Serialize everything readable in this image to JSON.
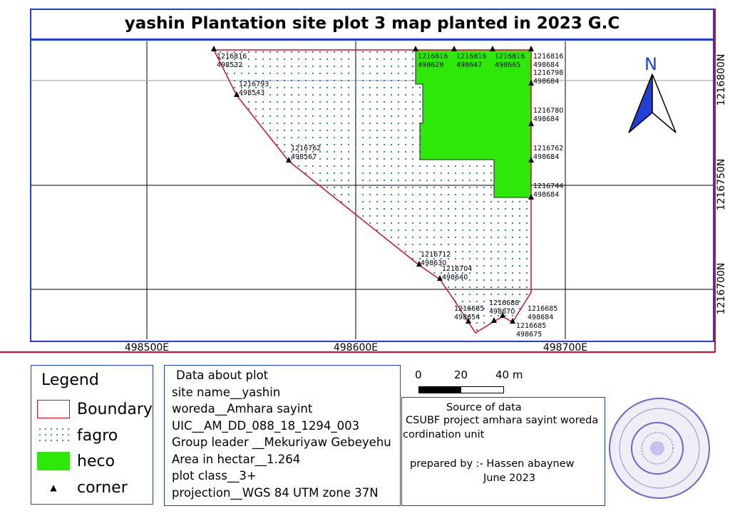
{
  "title": "yashin Plantation site plot 3 map planted in 2023 G.C",
  "grid": {
    "northings": [
      "1216800N",
      "1216750N",
      "1216700N"
    ],
    "eastings": [
      "498500E",
      "498600E",
      "498700E"
    ]
  },
  "north_arrow": {
    "label": "N",
    "color": "#1f3fd6"
  },
  "corners": [
    {
      "n": "1216816",
      "e": "498532"
    },
    {
      "n": "1216793",
      "e": "498543"
    },
    {
      "n": "1216762",
      "e": "498567"
    },
    {
      "n": "1216816",
      "e": "498628"
    },
    {
      "n": "1216816",
      "e": "498647"
    },
    {
      "n": "1216816",
      "e": "498665"
    },
    {
      "n": "1216816",
      "e": "498684"
    },
    {
      "n": "1216798",
      "e": "498684"
    },
    {
      "n": "1216780",
      "e": "498684"
    },
    {
      "n": "1216762",
      "e": "498684"
    },
    {
      "n": "1216744",
      "e": "498684"
    },
    {
      "n": "1216712",
      "e": "498630"
    },
    {
      "n": "1216704",
      "e": "498640"
    },
    {
      "n": "1216685",
      "e": "498654"
    },
    {
      "n": "1216688",
      "e": "498670"
    },
    {
      "n": "1216685",
      "e": "498684"
    },
    {
      "n": "1216685",
      "e": "498675"
    }
  ],
  "legend": {
    "title": "Legend",
    "items": [
      {
        "label": "Boundary",
        "color": "#d0102a"
      },
      {
        "label": "fagro",
        "color": "#3a7fc0"
      },
      {
        "label": "heco",
        "color": "#2ee80a"
      },
      {
        "label": "corner",
        "icon": "triangle-icon"
      }
    ]
  },
  "plot_info": {
    "heading": "Data about plot",
    "lines": [
      "site name__yashin",
      "woreda__Amhara sayint",
      "UIC__AM_DD_088_18_1294_003",
      "Group leader __Mekuriyaw Gebeyehu",
      "Area in hectar__1.264",
      "plot class__3+",
      "projection__WGS 84 UTM zone 37N"
    ]
  },
  "scale_bar": {
    "labels": [
      "0",
      "20",
      "40 m"
    ]
  },
  "source": {
    "heading": "Source of data",
    "line1": "CSUBF project amhara sayint woreda",
    "line2": "cordination unit",
    "prepared": "prepared by :- Hassen abaynew",
    "date": "June 2023"
  },
  "stamp": {
    "color": "#7a60d0"
  }
}
